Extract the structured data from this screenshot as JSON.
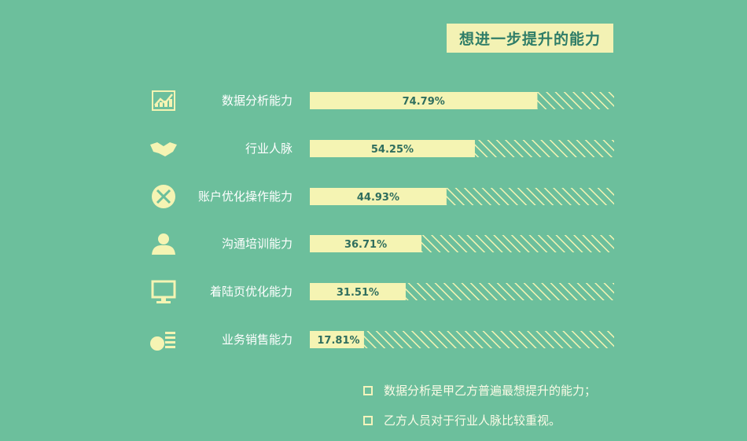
{
  "title": "想进一步提升的能力",
  "colors": {
    "background": "#6cbf9c",
    "bar_fill": "#f5f4b3",
    "hatch": "#f5f4b3",
    "value_text": "#2f6e5e",
    "label_text": "#ffffff"
  },
  "chart_data": {
    "type": "bar",
    "orientation": "horizontal",
    "title": "想进一步提升的能力",
    "categories": [
      "数据分析能力",
      "行业人脉",
      "账户优化操作能力",
      "沟通培训能力",
      "着陆页优化能力",
      "业务销售能力"
    ],
    "values": [
      74.79,
      54.25,
      44.93,
      36.71,
      31.51,
      17.81
    ],
    "value_labels": [
      "74.79%",
      "54.25%",
      "44.93%",
      "36.71%",
      "31.51%",
      "17.81%"
    ],
    "icons": [
      "growth-chart-icon",
      "handshake-icon",
      "tools-icon",
      "person-icon",
      "monitor-icon",
      "money-list-icon"
    ],
    "xlim": [
      0,
      100
    ],
    "unit": "%",
    "grid": false,
    "legend": "none"
  },
  "notes": [
    "数据分析是甲乙方普遍最想提升的能力；",
    "乙方人员对于行业人脉比较重视。"
  ]
}
